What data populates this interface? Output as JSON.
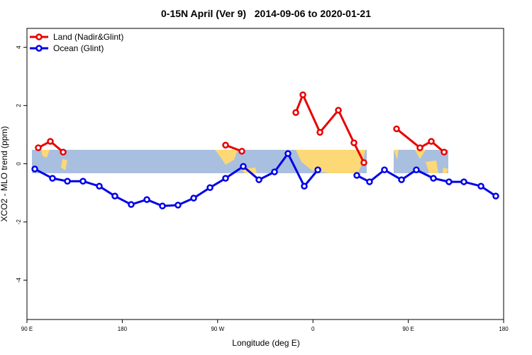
{
  "chart_data": {
    "type": "line",
    "title": "0-15N April (Ver 9)   2014-09-06 to 2020-01-21",
    "xlabel": "Longitude (deg E)",
    "ylabel": "XCO2 - MLO trend (ppm)",
    "xlim": [
      90,
      540
    ],
    "ylim": [
      -5.35,
      4.65
    ],
    "xticks": [
      {
        "value": 90,
        "label": "90 E"
      },
      {
        "value": 180,
        "label": "180"
      },
      {
        "value": 270,
        "label": "90 W"
      },
      {
        "value": 360,
        "label": "0"
      },
      {
        "value": 450,
        "label": "90 E"
      },
      {
        "value": 540,
        "label": "180"
      }
    ],
    "yticks": [
      -4,
      -2,
      0,
      2,
      4
    ],
    "legend": "top-left",
    "series": [
      {
        "name": "Land (Nadir&Glint)",
        "color": "#e80000",
        "x": [
          100.7,
          112.1,
          124.2,
          null,
          277.5,
          292.9,
          null,
          343.8,
          350.5,
          366.6,
          384.0,
          398.7,
          408.1,
          null,
          438.9,
          461.0,
          471.7,
          483.8
        ],
        "values": [
          0.55,
          0.77,
          0.4,
          null,
          0.64,
          0.43,
          null,
          1.76,
          2.37,
          1.08,
          1.84,
          0.72,
          0.04,
          null,
          1.2,
          0.55,
          0.77,
          0.4
        ]
      },
      {
        "name": "Ocean (Glint)",
        "color": "#0000e8",
        "x": [
          97.4,
          114.1,
          128.2,
          142.9,
          158.3,
          173.0,
          188.4,
          203.2,
          217.9,
          232.6,
          247.4,
          262.8,
          277.5,
          294.2,
          309.0,
          323.7,
          336.4,
          351.8,
          364.6,
          null,
          401.4,
          413.4,
          427.5,
          443.6,
          457.6,
          473.7,
          488.4,
          502.5,
          518.6,
          532.6
        ],
        "values": [
          -0.18,
          -0.5,
          -0.6,
          -0.6,
          -0.77,
          -1.11,
          -1.4,
          -1.23,
          -1.45,
          -1.42,
          -1.18,
          -0.82,
          -0.5,
          -0.09,
          -0.55,
          -0.28,
          0.35,
          -0.77,
          -0.21,
          null,
          -0.4,
          -0.62,
          -0.21,
          -0.55,
          -0.21,
          -0.5,
          -0.62,
          -0.62,
          -0.77,
          -1.11
        ]
      }
    ]
  }
}
